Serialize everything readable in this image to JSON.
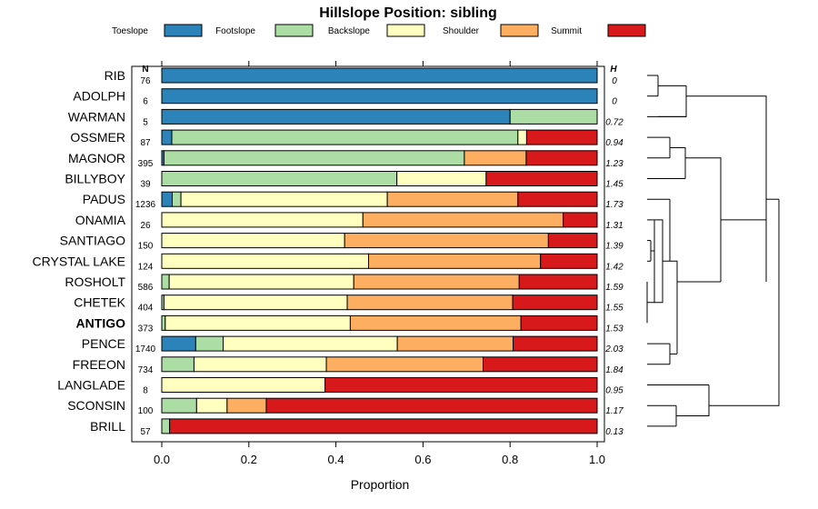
{
  "chart_data": {
    "type": "bar",
    "orientation": "horizontal",
    "stacked": true,
    "title": "Hillslope Position: sibling",
    "xlabel": "Proportion",
    "xlim": [
      0,
      1
    ],
    "xticks": [
      "0.0",
      "0.2",
      "0.4",
      "0.6",
      "0.8",
      "1.0"
    ],
    "n_header": "N",
    "h_header": "H",
    "legend": [
      "Toeslope",
      "Footslope",
      "Backslope",
      "Shoulder",
      "Summit"
    ],
    "colors": [
      "#2b83ba",
      "#abdda4",
      "#ffffbf",
      "#fdae61",
      "#d7191c"
    ],
    "highlight": "ANTIGO",
    "categories": [
      "RIB",
      "ADOLPH",
      "WARMAN",
      "OSSMER",
      "MAGNOR",
      "BILLYBOY",
      "PADUS",
      "ONAMIA",
      "SANTIAGO",
      "CRYSTAL LAKE",
      "ROSHOLT",
      "CHETEK",
      "ANTIGO",
      "PENCE",
      "FREEON",
      "LANGLADE",
      "SCONSIN",
      "BRILL"
    ],
    "n": [
      "76",
      "6",
      "5",
      "87",
      "395",
      "39",
      "1236",
      "26",
      "150",
      "124",
      "586",
      "404",
      "373",
      "1740",
      "734",
      "8",
      "100",
      "57"
    ],
    "h": [
      "0",
      "0",
      "0.72",
      "0.94",
      "1.23",
      "1.45",
      "1.73",
      "1.31",
      "1.39",
      "1.42",
      "1.59",
      "1.55",
      "1.53",
      "2.03",
      "1.84",
      "0.95",
      "1.17",
      "0.13"
    ],
    "series": [
      {
        "name": "Toeslope",
        "values": [
          1.0,
          1.0,
          0.8,
          0.023,
          0.005,
          0.0,
          0.024,
          0.0,
          0.0,
          0.0,
          0.0,
          0.0,
          0.0,
          0.078,
          0.0,
          0.0,
          0.0,
          0.0
        ]
      },
      {
        "name": "Footslope",
        "values": [
          0.0,
          0.0,
          0.2,
          0.795,
          0.69,
          0.54,
          0.02,
          0.0,
          0.0,
          0.0,
          0.017,
          0.005,
          0.008,
          0.063,
          0.074,
          0.0,
          0.08,
          0.018
        ]
      },
      {
        "name": "Backslope",
        "values": [
          0.0,
          0.0,
          0.0,
          0.02,
          0.0,
          0.205,
          0.474,
          0.462,
          0.42,
          0.475,
          0.424,
          0.421,
          0.425,
          0.4,
          0.304,
          0.375,
          0.07,
          0.0
        ]
      },
      {
        "name": "Shoulder",
        "values": [
          0.0,
          0.0,
          0.0,
          0.0,
          0.142,
          0.0,
          0.3,
          0.46,
          0.468,
          0.395,
          0.38,
          0.38,
          0.392,
          0.266,
          0.36,
          0.0,
          0.09,
          0.0
        ]
      },
      {
        "name": "Summit",
        "values": [
          0.0,
          0.0,
          0.0,
          0.162,
          0.163,
          0.255,
          0.182,
          0.078,
          0.112,
          0.13,
          0.179,
          0.194,
          0.175,
          0.193,
          0.262,
          0.625,
          0.76,
          0.982
        ]
      }
    ]
  }
}
